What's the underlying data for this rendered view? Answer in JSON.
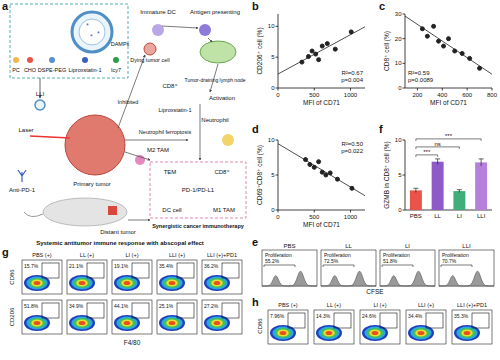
{
  "panel_labels": [
    "a",
    "b",
    "c",
    "d",
    "e",
    "f",
    "g",
    "h"
  ],
  "diagram": {
    "nodes": [
      {
        "label": "PC"
      },
      {
        "label": "CHO"
      },
      {
        "label": "DSPE-PEG"
      },
      {
        "label": "Liproxstatin-1"
      },
      {
        "label": "Icy7"
      },
      {
        "label": "LLI"
      },
      {
        "label": "Laser"
      },
      {
        "label": "Anti-PD-1"
      },
      {
        "label": "Primary tumor"
      },
      {
        "label": "Distant tumor"
      },
      {
        "label": "Immature DC"
      },
      {
        "label": "Antigen presenting"
      },
      {
        "label": "Tumor-draining lymph node"
      },
      {
        "label": "Activation"
      },
      {
        "label": "Dying tumor cell"
      },
      {
        "label": "DAMPs"
      },
      {
        "label": "CD8⁺"
      },
      {
        "label": "Neutrophil"
      },
      {
        "label": "Inhibited"
      },
      {
        "label": "Liproxstatin-1"
      },
      {
        "label": "Neutrophil ferroptosis"
      },
      {
        "label": "M2 TAM"
      },
      {
        "label": "TEM"
      },
      {
        "label": "CD8⁺"
      },
      {
        "label": "PD-1/PD-L1"
      },
      {
        "label": "DC cell"
      },
      {
        "label": "M1 TAM"
      },
      {
        "label": "Synergistic cancer immunotherapy"
      },
      {
        "label": "Systemic antitumor immune response with abscopal effect"
      }
    ]
  },
  "chart_data": [
    {
      "type": "scatter",
      "x_label": "MFI of CD71",
      "y_label": "CD206⁺ cell (%)",
      "x": [
        330,
        420,
        470,
        520,
        560,
        610,
        680,
        790,
        1010
      ],
      "values": [
        4.2,
        5.1,
        6.0,
        5.5,
        4.6,
        6.8,
        7.2,
        6.3,
        9.1
      ],
      "xlim": [
        0,
        1200
      ],
      "xticks": [
        0,
        500,
        1000
      ],
      "ylim": [
        0,
        12
      ],
      "yticks": [
        0,
        5,
        10
      ],
      "annotations": [
        "R²=0.67",
        "p=0.004"
      ],
      "color": "#222222",
      "marker": "circle"
    },
    {
      "type": "scatter",
      "x_label": "MFI of CD71",
      "y_label": "CD8⁺ cell (%)",
      "x": [
        240,
        280,
        330,
        370,
        410,
        450,
        500,
        560,
        620,
        700
      ],
      "values": [
        24,
        21,
        25,
        19,
        17,
        20,
        15,
        14,
        12,
        8
      ],
      "xlim": [
        100,
        800
      ],
      "xticks": [
        200,
        400,
        600,
        800
      ],
      "ylim": [
        0,
        30
      ],
      "yticks": [
        0,
        10,
        20,
        30
      ],
      "annotations": [
        "R²=0.59",
        "p=0.0089"
      ],
      "color": "#222222",
      "marker": "circle"
    },
    {
      "type": "scatter",
      "x_label": "MFI of CD71",
      "y_label": "CD69⁺CD8⁺ cell (%)",
      "x": [
        380,
        440,
        500,
        560,
        610,
        660,
        720,
        820,
        1020
      ],
      "values": [
        7.2,
        6.5,
        6.1,
        6.9,
        5.4,
        5.0,
        5.3,
        4.4,
        3.1
      ],
      "xlim": [
        0,
        1200
      ],
      "xticks": [
        0,
        500,
        1000
      ],
      "ylim": [
        0,
        10
      ],
      "yticks": [
        0,
        5,
        10
      ],
      "annotations": [
        "R²=0.50",
        "p=0.022"
      ],
      "color": "#222222",
      "marker": "circle"
    },
    {
      "type": "bar",
      "y_label": "GZMB in CD8⁺ cell (%)",
      "categories": [
        "PBS",
        "LL",
        "LI",
        "LLI"
      ],
      "values": [
        2.8,
        6.9,
        2.7,
        6.8
      ],
      "errors": [
        0.3,
        0.4,
        0.2,
        0.5
      ],
      "colors": [
        "#e8534a",
        "#8e5ac8",
        "#3fae78",
        "#b77fdc"
      ],
      "ylim": [
        0,
        10
      ],
      "yticks": [
        0,
        5,
        10
      ],
      "significance": [
        {
          "pair": [
            0,
            1
          ],
          "label": "***"
        },
        {
          "pair": [
            0,
            2
          ],
          "label": "ns"
        },
        {
          "pair": [
            0,
            3
          ],
          "label": "***"
        }
      ]
    }
  ],
  "cfse": {
    "x_label": "CFSE",
    "gate": "Proliferation",
    "panels": [
      {
        "title": "PBS",
        "percent": "55.2%"
      },
      {
        "title": "LL",
        "percent": "72.5%"
      },
      {
        "title": "LI",
        "percent": "51.8%"
      },
      {
        "title": "LLI",
        "percent": "70.7%"
      }
    ]
  },
  "flow_g": {
    "titles": [
      "PBS (+)",
      "LL (+)",
      "LI (+)",
      "LLI (+)",
      "LLI (+)+PD1"
    ],
    "y_labels": [
      "CD86",
      "CD206"
    ],
    "x_label": "F4/80",
    "rows": [
      [
        "15.7%",
        "21.1%",
        "19.1%",
        "35.4%",
        "36.2%"
      ],
      [
        "51.8%",
        "34.9%",
        "44.1%",
        "25.1%",
        "27.2%"
      ]
    ]
  },
  "flow_h": {
    "titles": [
      "PBS (+)",
      "LL (+)",
      "LI (+)",
      "LLI (+)",
      "LLI (+)+PD1"
    ],
    "y_label": "CD86",
    "percents": [
      "7.96%",
      "14.3%",
      "24.6%",
      "34.4%",
      "35.3%"
    ]
  }
}
